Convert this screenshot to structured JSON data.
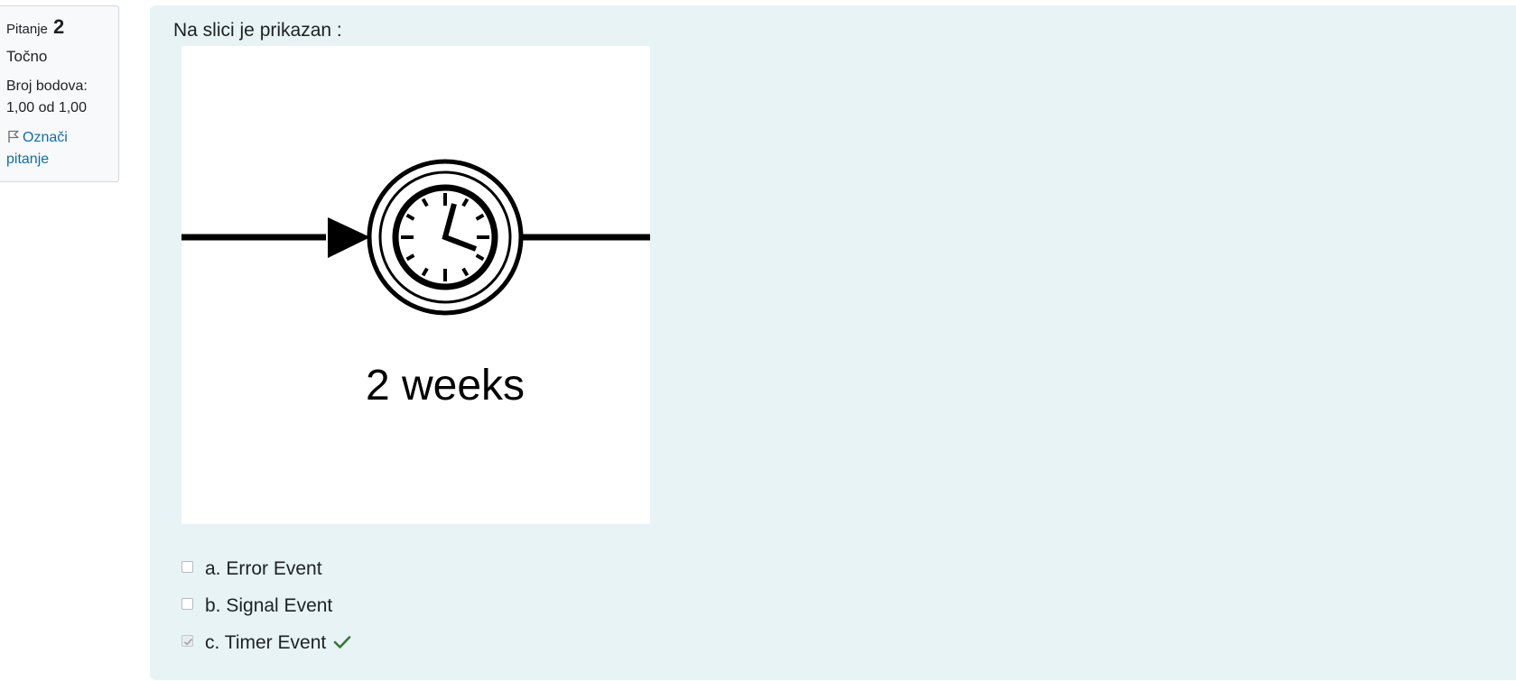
{
  "question_info": {
    "question_label": "Pitanje",
    "question_number": "2",
    "state": "Točno",
    "grade_label": "Broj bodova:",
    "grade_value": "1,00 od 1,00",
    "flag_label_line1": "Označi",
    "flag_label_line2": "pitanje"
  },
  "question": {
    "text": "Na slici je prikazan :",
    "image": {
      "caption": "2 weeks",
      "icon": "bpmn-timer-intermediate-event-icon"
    }
  },
  "answers": [
    {
      "label": "a. Error Event",
      "checked": false,
      "correct": false
    },
    {
      "label": "b. Signal Event",
      "checked": false,
      "correct": false
    },
    {
      "label": "c. Timer Event",
      "checked": true,
      "correct": true
    }
  ],
  "colors": {
    "content_background": "#e7f3f5",
    "info_background": "#f7f9fa",
    "link": "#0f6fa8",
    "correct_tick": "#357a32"
  }
}
